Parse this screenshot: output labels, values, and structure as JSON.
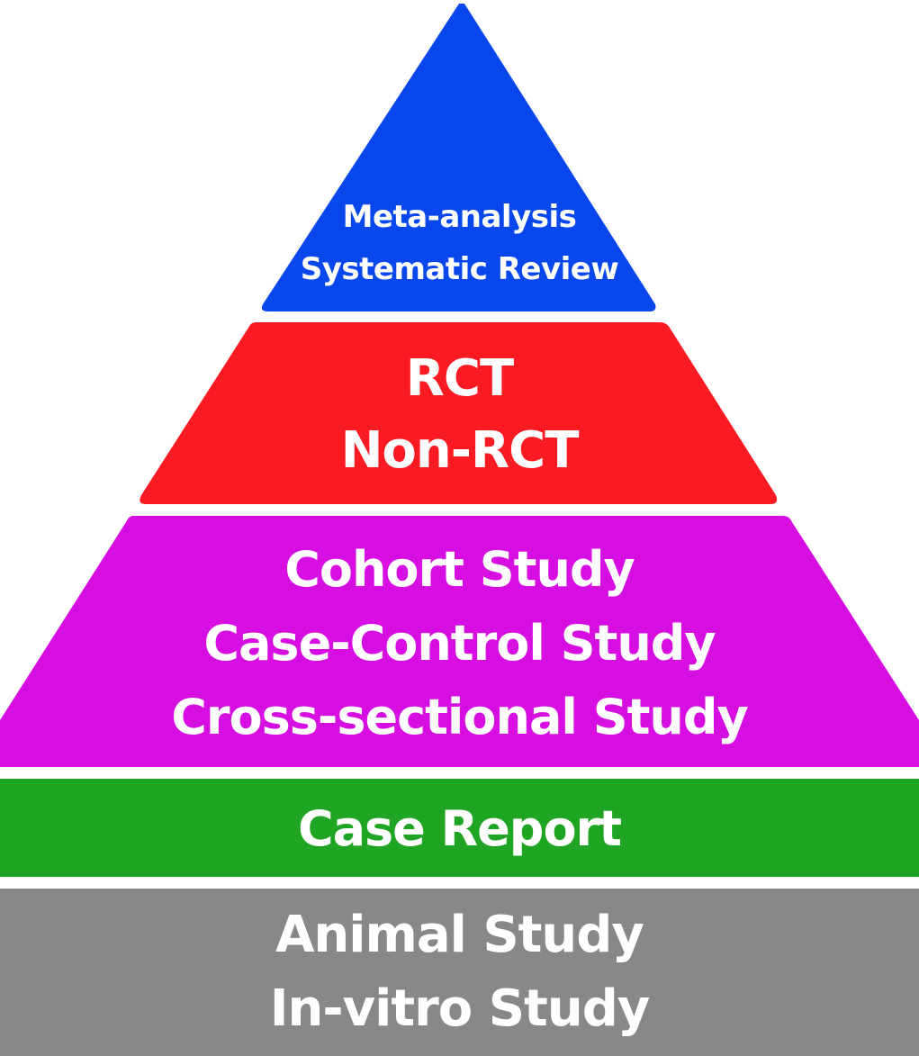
{
  "tiers": [
    {
      "id": "systematic-review",
      "color": "#0747ec",
      "lines": [
        "Meta-analysis",
        "Systematic Review"
      ]
    },
    {
      "id": "trials",
      "color": "#fa1a22",
      "lines": [
        "RCT",
        "Non-RCT"
      ]
    },
    {
      "id": "observational",
      "color": "#d60ee2",
      "lines": [
        "Cohort Study",
        "Case-Control Study",
        "Cross-sectional Study"
      ]
    },
    {
      "id": "case-report",
      "color": "#1fa424",
      "lines": [
        "Case Report"
      ]
    },
    {
      "id": "basic-research",
      "color": "#888888",
      "lines": [
        "Animal Study",
        "In-vitro Study"
      ]
    }
  ]
}
